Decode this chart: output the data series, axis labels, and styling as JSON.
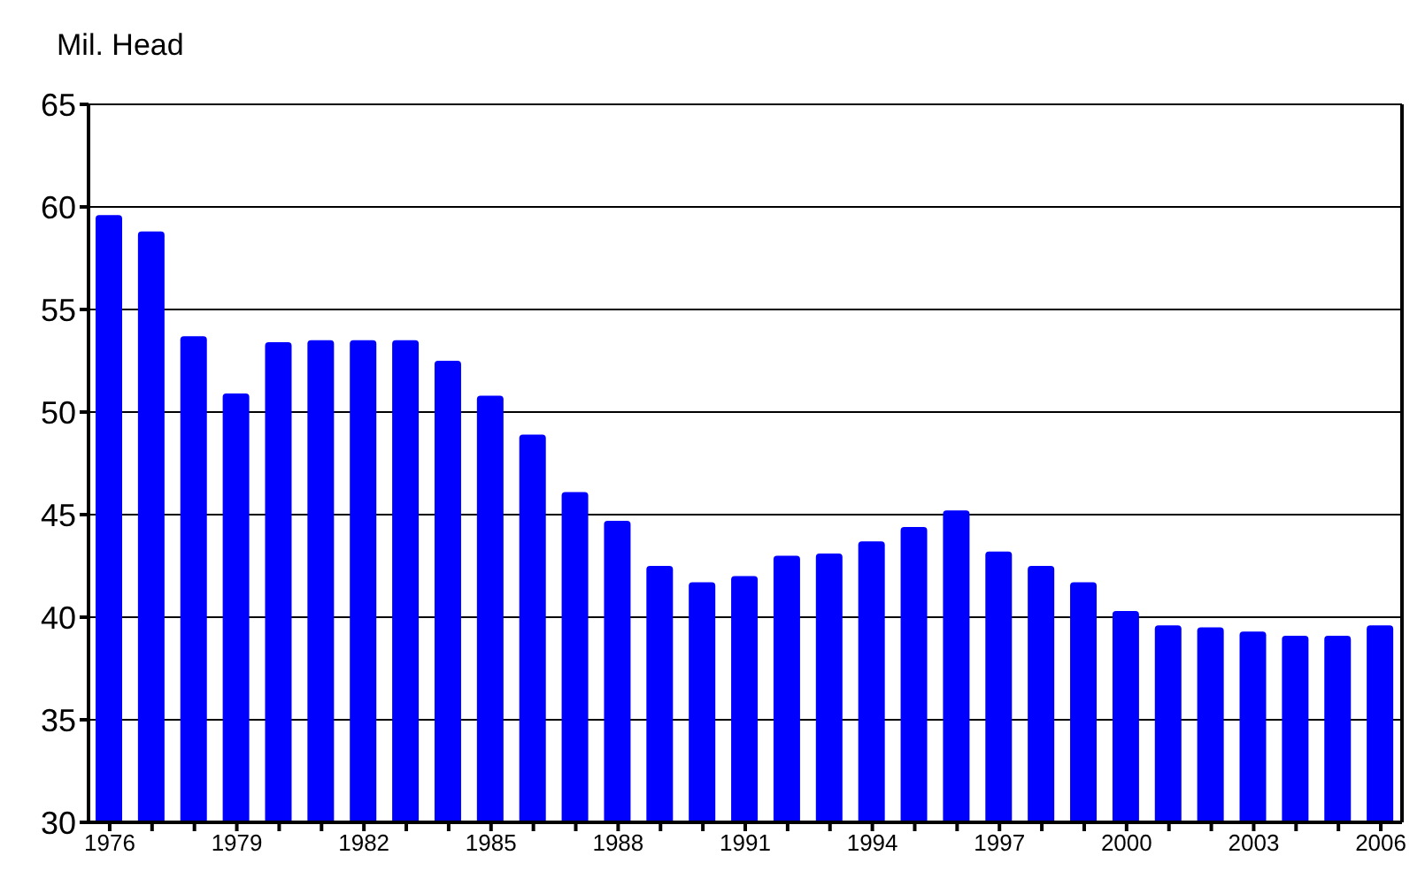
{
  "chart_data": {
    "type": "bar",
    "ylabel": "Mil. Head",
    "categories": [
      "1976",
      null,
      null,
      "1979",
      null,
      null,
      "1982",
      null,
      null,
      "1985",
      null,
      null,
      "1988",
      null,
      null,
      "1991",
      null,
      null,
      "1994",
      null,
      null,
      "1997",
      null,
      null,
      "2000",
      null,
      null,
      "2003",
      null,
      null,
      "2006"
    ],
    "series": [
      {
        "color": "#0000ff",
        "values": [
          59.6,
          58.8,
          53.7,
          50.9,
          53.4,
          53.5,
          53.5,
          53.5,
          52.5,
          50.8,
          48.9,
          46.1,
          44.7,
          42.5,
          41.7,
          42.0,
          43.0,
          43.1,
          43.7,
          44.4,
          45.2,
          43.2,
          42.5,
          41.7,
          40.3,
          39.6,
          39.5,
          39.3,
          39.1,
          39.1,
          39.6
        ]
      }
    ],
    "ylim": [
      30,
      65
    ],
    "yticks": [
      30,
      35,
      40,
      45,
      50,
      55,
      60,
      65
    ],
    "grid": "y"
  }
}
